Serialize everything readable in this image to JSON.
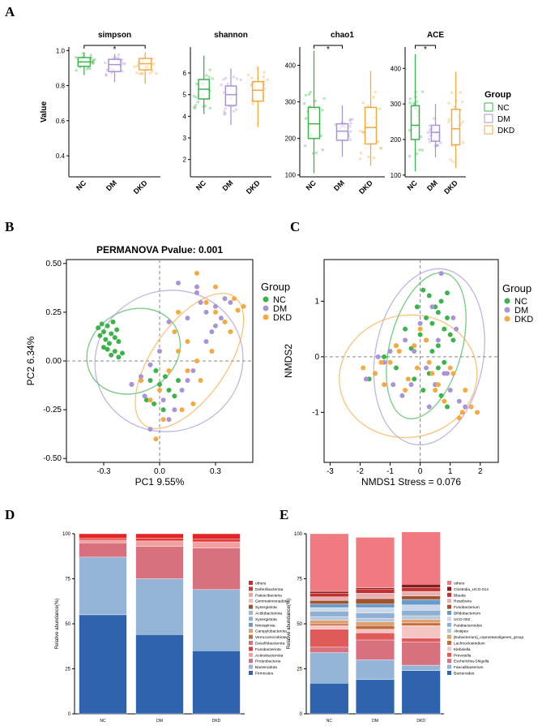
{
  "colors": {
    "NC": "#3cb44b",
    "DM": "#a994d6",
    "DKD": "#f5a940",
    "Firmicutes": "#2f63ad",
    "Bacteroidota": "#94b5d8",
    "Proteobacteria": "#d8707e",
    "Actinobacteriota": "#f2a0a0",
    "Fusobacteriota": "#e63939",
    "others": "#e02626"
  },
  "chart_data": [
    {
      "type": "box",
      "panel_id": "A",
      "title": "simpson",
      "ylabel": "Value",
      "categories": [
        "NC",
        "DM",
        "DKD"
      ],
      "ylim": [
        0.28,
        1.02
      ],
      "yticks": [
        0.4,
        0.6,
        0.8,
        1.0
      ],
      "ytick_labels": [
        "0.4",
        "0.6",
        "0.8",
        "1.0"
      ],
      "annotation": "*",
      "bracket": [
        "NC",
        "DKD"
      ],
      "boxes": [
        {
          "min": 0.86,
          "q1": 0.91,
          "median": 0.935,
          "q3": 0.96,
          "max": 0.99
        },
        {
          "min": 0.82,
          "q1": 0.88,
          "median": 0.92,
          "q3": 0.95,
          "max": 0.98
        },
        {
          "min": 0.81,
          "q1": 0.89,
          "median": 0.925,
          "q3": 0.955,
          "max": 0.99
        }
      ]
    },
    {
      "type": "box",
      "panel_id": "A",
      "title": "shannon",
      "ylabel": "",
      "categories": [
        "NC",
        "DM",
        "DKD"
      ],
      "ylim": [
        1.2,
        7.2
      ],
      "yticks": [
        2,
        3,
        4,
        5,
        6
      ],
      "ytick_labels": [
        "2",
        "3",
        "4",
        "5",
        "6"
      ],
      "annotation": "",
      "bracket": [],
      "boxes": [
        {
          "min": 4.1,
          "q1": 4.8,
          "median": 5.25,
          "q3": 5.7,
          "max": 6.8
        },
        {
          "min": 3.6,
          "q1": 4.5,
          "median": 5.0,
          "q3": 5.4,
          "max": 6.2
        },
        {
          "min": 3.5,
          "q1": 4.7,
          "median": 5.2,
          "q3": 5.6,
          "max": 6.3
        }
      ]
    },
    {
      "type": "box",
      "panel_id": "A",
      "title": "chao1",
      "ylabel": "",
      "categories": [
        "NC",
        "DM",
        "DKD"
      ],
      "ylim": [
        95,
        450
      ],
      "yticks": [
        100,
        200,
        300,
        400
      ],
      "ytick_labels": [
        "100",
        "200",
        "300",
        "400"
      ],
      "annotation": "*",
      "bracket": [
        "NC",
        "DM"
      ],
      "boxes": [
        {
          "min": 105,
          "q1": 200,
          "median": 240,
          "q3": 285,
          "max": 440
        },
        {
          "min": 150,
          "q1": 195,
          "median": 220,
          "q3": 240,
          "max": 290
        },
        {
          "min": 125,
          "q1": 185,
          "median": 230,
          "q3": 285,
          "max": 385
        }
      ]
    },
    {
      "type": "box",
      "panel_id": "A",
      "title": "ACE",
      "ylabel": "",
      "categories": [
        "NC",
        "DM",
        "DKD"
      ],
      "ylim": [
        95,
        460
      ],
      "yticks": [
        100,
        200,
        300,
        400
      ],
      "ytick_labels": [
        "100",
        "200",
        "300",
        "400"
      ],
      "annotation": "*",
      "bracket": [
        "NC",
        "DM"
      ],
      "boxes": [
        {
          "min": 110,
          "q1": 200,
          "median": 240,
          "q3": 295,
          "max": 440
        },
        {
          "min": 150,
          "q1": 195,
          "median": 220,
          "q3": 240,
          "max": 300
        },
        {
          "min": 120,
          "q1": 185,
          "median": 230,
          "q3": 285,
          "max": 390
        }
      ]
    },
    {
      "type": "scatter",
      "panel_id": "B",
      "title": "PERMANOVA Pvalue: 0.001",
      "xlabel": "PC1 9.55%",
      "ylabel": "PC2 6.34%",
      "xlim": [
        -0.5,
        0.5
      ],
      "ylim": [
        -0.52,
        0.52
      ],
      "xticks": [
        -0.3,
        0,
        0.3
      ],
      "xtick_labels": [
        "-0.3",
        "0.0",
        "0.3"
      ],
      "yticks": [
        -0.5,
        -0.25,
        0,
        0.25,
        0.5
      ],
      "ytick_labels": [
        "-0.50",
        "-0.25",
        "0.00",
        "0.25",
        "0.50"
      ],
      "series": [
        {
          "name": "NC",
          "x": [
            -0.33,
            -0.32,
            -0.31,
            -0.3,
            -0.29,
            -0.28,
            -0.27,
            -0.26,
            -0.25,
            -0.24,
            -0.23,
            -0.22,
            -0.3,
            -0.28,
            -0.26,
            -0.24,
            -0.22,
            -0.2,
            -0.05,
            0.0,
            0.03,
            0.05,
            -0.02,
            0.08,
            -0.1,
            -0.07,
            -0.15,
            0.1,
            -0.03,
            0.02
          ],
          "y": [
            0.17,
            0.13,
            0.19,
            0.15,
            0.11,
            0.18,
            0.09,
            0.14,
            0.2,
            0.12,
            0.16,
            0.1,
            0.07,
            0.06,
            0.03,
            0.05,
            0.02,
            0.04,
            -0.1,
            -0.12,
            -0.08,
            -0.15,
            -0.05,
            -0.18,
            -0.1,
            -0.2,
            -0.12,
            -0.1,
            -0.22,
            -0.25
          ]
        },
        {
          "name": "DM",
          "x": [
            0.2,
            0.22,
            0.25,
            0.3,
            0.33,
            0.35,
            0.38,
            0.1,
            0.05,
            0.0,
            -0.05,
            -0.1,
            -0.15,
            0.12,
            0.15,
            0.18,
            0.25,
            0.3,
            0.02,
            0.08,
            -0.08,
            0.05,
            0.28,
            0.2,
            0.15,
            -0.05
          ],
          "y": [
            0.35,
            0.3,
            0.25,
            0.28,
            0.22,
            0.32,
            0.3,
            0.4,
            0.2,
            0.05,
            -0.02,
            -0.08,
            -0.12,
            -0.15,
            -0.1,
            -0.05,
            0.1,
            0.18,
            -0.2,
            -0.25,
            -0.18,
            -0.3,
            0.15,
            0.38,
            0.22,
            -0.35
          ]
        },
        {
          "name": "DKD",
          "x": [
            0.2,
            0.25,
            0.3,
            0.35,
            0.4,
            0.45,
            0.15,
            0.1,
            0.05,
            0.0,
            -0.05,
            0.12,
            0.18,
            0.22,
            0.28,
            0.08,
            0.02,
            -0.02,
            0.1,
            0.3,
            0.15,
            -0.1,
            0.38,
            0.2,
            0.42
          ],
          "y": [
            0.45,
            0.3,
            0.25,
            0.2,
            0.32,
            0.28,
            0.1,
            0.05,
            -0.05,
            -0.15,
            -0.2,
            -0.25,
            -0.22,
            -0.1,
            0.05,
            0.15,
            -0.3,
            -0.4,
            0.25,
            0.38,
            -0.05,
            -0.1,
            0.15,
            0.0,
            0.26
          ]
        }
      ],
      "ellipses": [
        {
          "name": "NC",
          "cx": -0.14,
          "cy": 0.05,
          "rx": 0.26,
          "ry": 0.21,
          "angle": -30
        },
        {
          "name": "DM",
          "cx": 0.05,
          "cy": 0.0,
          "rx": 0.4,
          "ry": 0.36,
          "angle": -20
        },
        {
          "name": "DKD",
          "cx": 0.16,
          "cy": 0.0,
          "rx": 0.42,
          "ry": 0.19,
          "angle": -55
        }
      ]
    },
    {
      "type": "scatter",
      "panel_id": "C",
      "title": "",
      "xlabel": "NMDS1",
      "ylabel": "NMDS2",
      "annotation": "Stress = 0.076",
      "xlim": [
        -3.2,
        2.6
      ],
      "ylim": [
        -1.9,
        1.75
      ],
      "xticks": [
        -3,
        -2,
        -1,
        0,
        1,
        2
      ],
      "xtick_labels": [
        "-3",
        "-2",
        "-1",
        "0",
        "1",
        "2"
      ],
      "yticks": [
        -1,
        0,
        1
      ],
      "ytick_labels": [
        "-1",
        "0",
        "1"
      ],
      "series": [
        {
          "name": "NC",
          "x": [
            0.1,
            0.3,
            0.5,
            0.7,
            0.9,
            0.2,
            0.4,
            0.6,
            0.8,
            1.0,
            1.1,
            -0.1,
            0.0,
            0.2,
            0.4,
            0.6,
            0.8,
            -0.3,
            -0.5,
            -1.7,
            -1.2,
            -0.8,
            0.3,
            0.5,
            0.7,
            0.9,
            -0.2,
            0.1,
            0.9,
            0.6
          ],
          "y": [
            1.2,
            1.1,
            0.9,
            1.0,
            1.15,
            0.7,
            0.6,
            0.8,
            0.5,
            0.4,
            0.3,
            0.9,
            0.4,
            0.3,
            0.1,
            0.2,
            -0.1,
            0.15,
            0.5,
            -0.4,
            0.0,
            -0.2,
            -0.3,
            -0.5,
            -0.7,
            -0.9,
            -0.4,
            -0.6,
            0.7,
            -0.2
          ]
        },
        {
          "name": "DM",
          "x": [
            -0.5,
            -0.8,
            -1.0,
            -1.2,
            -1.5,
            -1.8,
            0.2,
            0.5,
            0.8,
            1.0,
            1.3,
            -0.3,
            -0.6,
            0.0,
            0.4,
            0.7,
            1.1,
            1.5,
            -0.9,
            -0.2,
            0.6,
            1.2,
            0.3,
            -1.4,
            0.9
          ],
          "y": [
            0.3,
            0.2,
            0.1,
            -0.1,
            -0.3,
            -0.4,
            -0.2,
            -0.5,
            -0.3,
            -0.6,
            -0.8,
            -0.5,
            -0.7,
            0.6,
            0.9,
            1.5,
            0.7,
            -0.9,
            -0.5,
            0.1,
            0.3,
            0.5,
            -0.9,
            0.0,
            -0.3
          ]
        },
        {
          "name": "DKD",
          "x": [
            -1.9,
            -1.5,
            -1.2,
            -1.0,
            -0.7,
            -0.4,
            -0.1,
            0.2,
            0.5,
            0.8,
            1.1,
            1.4,
            1.7,
            1.9,
            -0.8,
            -0.5,
            0.0,
            0.3,
            0.6,
            1.0,
            1.3,
            -1.3,
            0.4,
            1.5,
            -0.2
          ],
          "y": [
            -0.2,
            -0.3,
            -0.5,
            -0.1,
            0.1,
            -0.4,
            -0.2,
            0.3,
            -0.6,
            -0.8,
            -0.3,
            -1.0,
            -0.9,
            -1.0,
            0.2,
            -0.6,
            0.5,
            -0.1,
            -0.5,
            -0.2,
            -1.1,
            -0.1,
            -0.3,
            -0.6,
            0.2
          ]
        }
      ],
      "ellipses": [
        {
          "name": "NC",
          "cx": 0.2,
          "cy": 0.2,
          "rx": 1.2,
          "ry": 1.35,
          "angle": 15
        },
        {
          "name": "DM",
          "cx": 0.3,
          "cy": 0.0,
          "rx": 1.8,
          "ry": 1.6,
          "angle": 10
        },
        {
          "name": "DKD",
          "cx": -0.4,
          "cy": -0.35,
          "rx": 2.3,
          "ry": 1.1,
          "angle": -10
        }
      ]
    },
    {
      "type": "stacked_bar",
      "panel_id": "D",
      "ylabel": "Relative abundance(%)",
      "categories": [
        "NC",
        "DM",
        "DKD"
      ],
      "ylim": [
        0,
        100
      ],
      "yticks": [
        0,
        25,
        50,
        75,
        100
      ],
      "ytick_labels": [
        "0",
        "25",
        "50",
        "75",
        "100"
      ],
      "legend": [
        "others",
        "Deferribacterota",
        "Patescibacteria",
        "Gemmatimonadota",
        "Synergistota",
        "Acidobacteriota",
        "Synergistota",
        "Nitrospirota",
        "Campylobacterota",
        "Verrucomicrobiota",
        "Desulfobacterota",
        "Fusobacteriota",
        "Actinobacteriota",
        "Proteobacteria",
        "Bacteroidota",
        "Firmicutes"
      ],
      "series": [
        {
          "name": "Firmicutes",
          "color": "#2f63ad",
          "values": [
            55,
            44,
            35
          ]
        },
        {
          "name": "Bacteroidota",
          "color": "#94b5d8",
          "values": [
            32,
            31,
            34
          ]
        },
        {
          "name": "Proteobacteria",
          "color": "#d8707e",
          "values": [
            8,
            18,
            23
          ]
        },
        {
          "name": "Actinobacteriota",
          "color": "#f2a0a0",
          "values": [
            1.5,
            3,
            3.5
          ]
        },
        {
          "name": "Fusobacteriota",
          "color": "#e63939",
          "values": [
            1,
            1.5,
            1.5
          ]
        },
        {
          "name": "others",
          "color": "#e02626",
          "values": [
            2.5,
            2.5,
            3
          ]
        }
      ]
    },
    {
      "type": "stacked_bar",
      "panel_id": "E",
      "ylabel": "Relative abundance(%)",
      "categories": [
        "NC",
        "DM",
        "DKD"
      ],
      "ylim": [
        0,
        100
      ],
      "yticks": [
        0,
        25,
        50,
        75,
        100
      ],
      "ytick_labels": [
        "0",
        "25",
        "50",
        "75",
        "100"
      ],
      "legend": [
        "others",
        "Clostridia_UCG-014",
        "Blautia",
        "Roseburia",
        "Fusobacterium",
        "Bifidobacterium",
        "UCG-002",
        "Parabacteroides",
        "Alistipes",
        "[Eubacterium]_coprostanoligenes_group",
        "Lachnoclostridium",
        "Klebsiella",
        "Prevotella",
        "Escherichia-Shigella",
        "Faecalibacterium",
        "Bacteroides"
      ],
      "series": [
        {
          "name": "Bacteroides",
          "color": "#2f63ad",
          "values": [
            17,
            19,
            24
          ]
        },
        {
          "name": "Faecalibacterium",
          "color": "#94b5d8",
          "values": [
            17,
            11,
            3
          ]
        },
        {
          "name": "Escherichia-Shigella",
          "color": "#d8707e",
          "values": [
            3,
            11,
            13
          ]
        },
        {
          "name": "Prevotella",
          "color": "#e05a5a",
          "values": [
            10,
            4,
            2
          ]
        },
        {
          "name": "Klebsiella",
          "color": "#f7c4c4",
          "values": [
            2,
            2,
            7
          ]
        },
        {
          "name": "Lachnoclostridium",
          "color": "#c46b3c",
          "values": [
            1,
            2,
            1.5
          ]
        },
        {
          "name": "[Eubacterium]_coprostanoligenes_group",
          "color": "#e0a070",
          "values": [
            2,
            2,
            2
          ]
        },
        {
          "name": "Alistipes",
          "color": "#b8c8dc",
          "values": [
            2,
            2,
            2
          ]
        },
        {
          "name": "Parabacteroides",
          "color": "#8fb0d4",
          "values": [
            3,
            3,
            3
          ]
        },
        {
          "name": "UCG-002",
          "color": "#c9d9e9",
          "values": [
            2,
            3,
            3
          ]
        },
        {
          "name": "Bifidobacterium",
          "color": "#6a9ac8",
          "values": [
            2,
            2,
            3
          ]
        },
        {
          "name": "Fusobacterium",
          "color": "#a0522d",
          "values": [
            2,
            3,
            2
          ]
        },
        {
          "name": "Roseburia",
          "color": "#e8b0b0",
          "values": [
            2,
            3,
            2.5
          ]
        },
        {
          "name": "Blautia",
          "color": "#c03030",
          "values": [
            2,
            2,
            2
          ]
        },
        {
          "name": "Clostridia_UCG-014",
          "color": "#8b1a1a",
          "values": [
            1,
            1,
            2
          ]
        },
        {
          "name": "others",
          "color": "#f07a80",
          "values": [
            32,
            28,
            29
          ]
        }
      ]
    }
  ],
  "panels": {
    "A": "A",
    "B": "B",
    "C": "C",
    "D": "D",
    "E": "E"
  },
  "legend_group": {
    "title": "Group",
    "items": [
      "NC",
      "DM",
      "DKD"
    ]
  },
  "pcoa": {
    "title": "PERMANOVA Pvalue: 0.001"
  },
  "nmds": {
    "xlabel_full": "NMDS1  Stress = 0.076"
  }
}
